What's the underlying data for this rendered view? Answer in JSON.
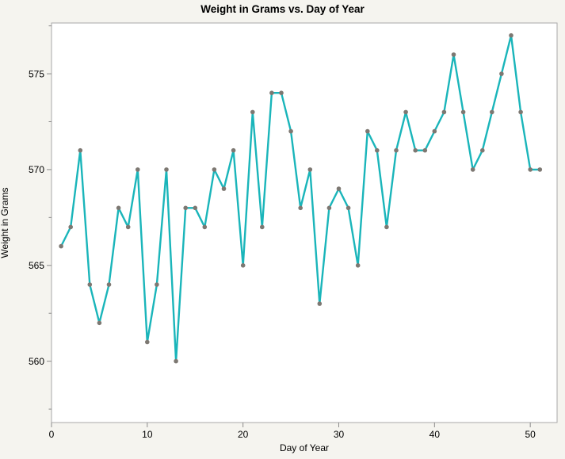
{
  "chart_data": {
    "type": "line",
    "title": "Weight in Grams vs. Day of Year",
    "xlabel": "Day of Year",
    "ylabel": "Weight in Grams",
    "x": [
      1,
      2,
      3,
      4,
      5,
      6,
      7,
      8,
      9,
      10,
      11,
      12,
      13,
      14,
      15,
      16,
      17,
      18,
      19,
      20,
      21,
      22,
      23,
      24,
      25,
      26,
      27,
      28,
      29,
      30,
      31,
      32,
      33,
      34,
      35,
      36,
      37,
      38,
      39,
      40,
      41,
      42,
      43,
      44,
      45,
      46,
      47,
      48,
      49,
      50,
      51
    ],
    "values": [
      566,
      567,
      571,
      564,
      562,
      564,
      568,
      567,
      570,
      561,
      564,
      570,
      560,
      568,
      568,
      567,
      570,
      569,
      571,
      565,
      573,
      567,
      574,
      574,
      572,
      568,
      570,
      563,
      568,
      569,
      568,
      565,
      572,
      571,
      567,
      571,
      573,
      571,
      571,
      572,
      573,
      576,
      573,
      570,
      571,
      573,
      575,
      577,
      573,
      570,
      570
    ],
    "xlim": [
      0,
      52.8
    ],
    "ylim": [
      556.8,
      577.65
    ],
    "x_ticks": [
      0,
      10,
      20,
      30,
      40,
      50
    ],
    "y_ticks": [
      560,
      565,
      570,
      575
    ],
    "y_minor_ticks": [
      557.5,
      562.5,
      567.5,
      572.5,
      577.5
    ],
    "grid": false,
    "legend": false,
    "colors": {
      "line": "#1ab5ba",
      "marker": "#7d7872",
      "frame": "#a9a9a9",
      "tick": "#8c8c8c",
      "plot_background": "#ffffff",
      "page_background": "#f5f4ef"
    }
  }
}
